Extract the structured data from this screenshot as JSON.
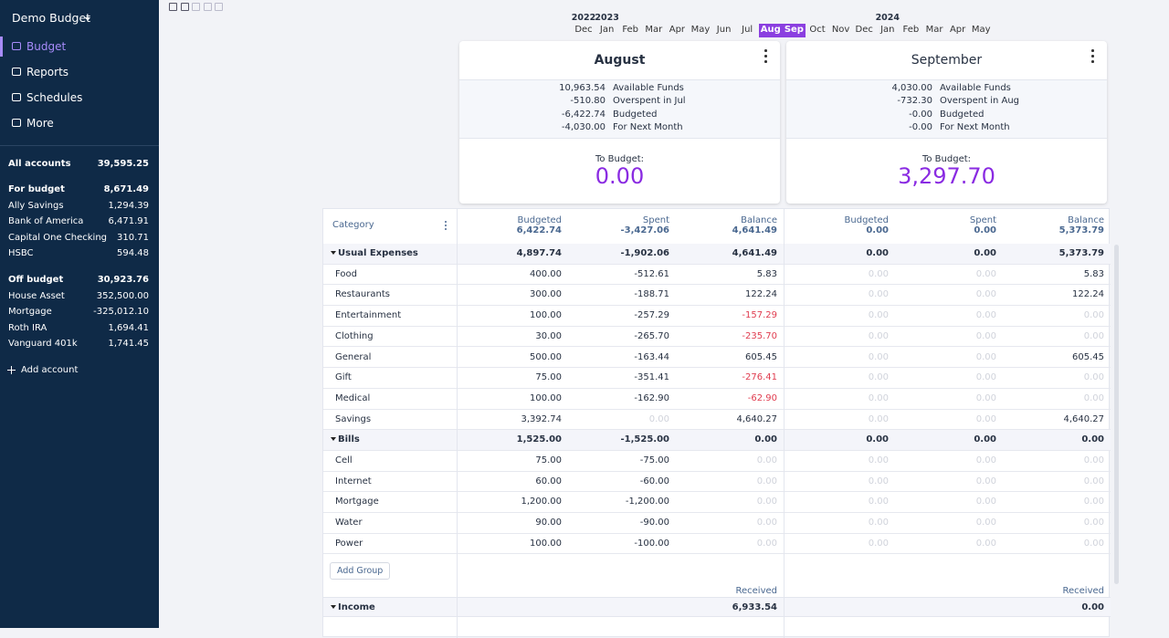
{
  "sidebar": {
    "title": "Demo Budget",
    "nav": [
      "Budget",
      "Reports",
      "Schedules",
      "More"
    ],
    "all_accounts": {
      "name": "All accounts",
      "amount": "39,595.25"
    },
    "account_groups": [
      {
        "name": "For budget",
        "amount": "8,671.49",
        "accounts": [
          {
            "name": "Ally Savings",
            "amount": "1,294.39"
          },
          {
            "name": "Bank of America",
            "amount": "6,471.91"
          },
          {
            "name": "Capital One Checking",
            "amount": "310.71"
          },
          {
            "name": "HSBC",
            "amount": "594.48"
          }
        ]
      },
      {
        "name": "Off budget",
        "amount": "30,923.76",
        "accounts": [
          {
            "name": "House Asset",
            "amount": "352,500.00"
          },
          {
            "name": "Mortgage",
            "amount": "-325,012.10"
          },
          {
            "name": "Roth IRA",
            "amount": "1,694.41"
          },
          {
            "name": "Vanguard 401k",
            "amount": "1,741.45"
          }
        ]
      }
    ],
    "add_account": "Add account"
  },
  "month_picker": {
    "months": [
      {
        "name": "Dec",
        "year": "2022"
      },
      {
        "name": "Jan",
        "year": "2023"
      },
      {
        "name": "Feb"
      },
      {
        "name": "Mar"
      },
      {
        "name": "Apr"
      },
      {
        "name": "May"
      },
      {
        "name": "Jun"
      },
      {
        "name": "Jul"
      },
      {
        "name": "Aug",
        "selected": true
      },
      {
        "name": "Sep",
        "selected": true
      },
      {
        "name": "Oct"
      },
      {
        "name": "Nov"
      },
      {
        "name": "Dec"
      },
      {
        "name": "Jan",
        "year": "2024"
      },
      {
        "name": "Feb"
      },
      {
        "name": "Mar"
      },
      {
        "name": "Apr"
      },
      {
        "name": "May"
      }
    ]
  },
  "cards": [
    {
      "title": "August",
      "summary": [
        {
          "amount": "10,963.54",
          "label": "Available Funds"
        },
        {
          "amount": "-510.80",
          "label": "Overspent in Jul"
        },
        {
          "amount": "-6,422.74",
          "label": "Budgeted"
        },
        {
          "amount": "-4,030.00",
          "label": "For Next Month"
        }
      ],
      "to_budget_label": "To Budget:",
      "to_budget": "0.00"
    },
    {
      "title": "September",
      "summary": [
        {
          "amount": "4,030.00",
          "label": "Available Funds"
        },
        {
          "amount": "-732.30",
          "label": "Overspent in Aug"
        },
        {
          "amount": "-0.00",
          "label": "Budgeted"
        },
        {
          "amount": "-0.00",
          "label": "For Next Month"
        }
      ],
      "to_budget_label": "To Budget:",
      "to_budget": "3,297.70"
    }
  ],
  "table": {
    "category": "Category",
    "headers": [
      {
        "label": "Budgeted",
        "total": "6,422.74"
      },
      {
        "label": "Spent",
        "total": "-3,427.06"
      },
      {
        "label": "Balance",
        "total": "4,641.49"
      },
      {
        "label": "Budgeted",
        "total": "0.00"
      },
      {
        "label": "Spent",
        "total": "0.00"
      },
      {
        "label": "Balance",
        "total": "5,373.79"
      }
    ],
    "groups": [
      {
        "name": "Usual Expenses",
        "values": [
          "4,897.74",
          "-1,902.06",
          "4,641.49",
          "0.00",
          "0.00",
          "5,373.79"
        ],
        "rows": [
          {
            "name": "Food",
            "values": [
              "400.00",
              "-512.61",
              "5.83",
              "0.00",
              "0.00",
              "5.83"
            ]
          },
          {
            "name": "Restaurants",
            "values": [
              "300.00",
              "-188.71",
              "122.24",
              "0.00",
              "0.00",
              "122.24"
            ]
          },
          {
            "name": "Entertainment",
            "values": [
              "100.00",
              "-257.29",
              "-157.29",
              "0.00",
              "0.00",
              "0.00"
            ]
          },
          {
            "name": "Clothing",
            "values": [
              "30.00",
              "-265.70",
              "-235.70",
              "0.00",
              "0.00",
              "0.00"
            ]
          },
          {
            "name": "General",
            "values": [
              "500.00",
              "-163.44",
              "605.45",
              "0.00",
              "0.00",
              "605.45"
            ]
          },
          {
            "name": "Gift",
            "values": [
              "75.00",
              "-351.41",
              "-276.41",
              "0.00",
              "0.00",
              "0.00"
            ]
          },
          {
            "name": "Medical",
            "values": [
              "100.00",
              "-162.90",
              "-62.90",
              "0.00",
              "0.00",
              "0.00"
            ]
          },
          {
            "name": "Savings",
            "values": [
              "3,392.74",
              "0.00",
              "4,640.27",
              "0.00",
              "0.00",
              "4,640.27"
            ]
          }
        ]
      },
      {
        "name": "Bills",
        "values": [
          "1,525.00",
          "-1,525.00",
          "0.00",
          "0.00",
          "0.00",
          "0.00"
        ],
        "rows": [
          {
            "name": "Cell",
            "values": [
              "75.00",
              "-75.00",
              "0.00",
              "0.00",
              "0.00",
              "0.00"
            ]
          },
          {
            "name": "Internet",
            "values": [
              "60.00",
              "-60.00",
              "0.00",
              "0.00",
              "0.00",
              "0.00"
            ]
          },
          {
            "name": "Mortgage",
            "values": [
              "1,200.00",
              "-1,200.00",
              "0.00",
              "0.00",
              "0.00",
              "0.00"
            ]
          },
          {
            "name": "Water",
            "values": [
              "90.00",
              "-90.00",
              "0.00",
              "0.00",
              "0.00",
              "0.00"
            ]
          },
          {
            "name": "Power",
            "values": [
              "100.00",
              "-100.00",
              "0.00",
              "0.00",
              "0.00",
              "0.00"
            ]
          }
        ]
      }
    ],
    "add_group": "Add Group",
    "income": {
      "headers": [
        "Received",
        "Received"
      ],
      "name": "Income",
      "values": [
        "6,933.54",
        "0.00"
      ]
    }
  }
}
